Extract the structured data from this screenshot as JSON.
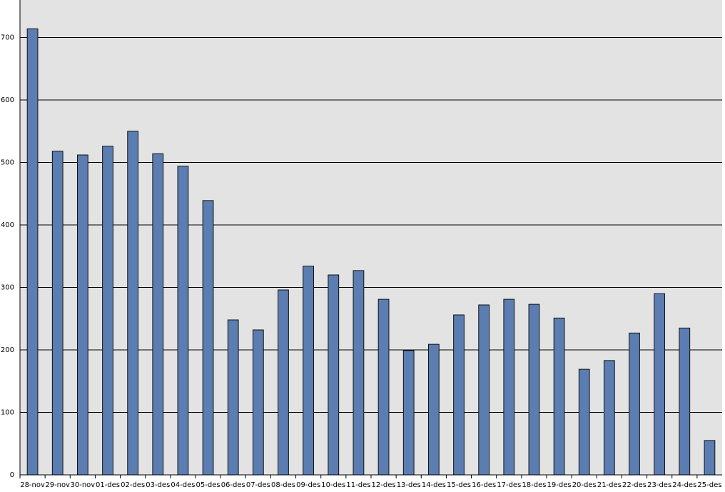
{
  "chart_data": {
    "type": "bar",
    "categories": [
      "28-nov",
      "29-nov",
      "30-nov",
      "01-des",
      "02-des",
      "03-des",
      "04-des",
      "05-des",
      "06-des",
      "07-des",
      "08-des",
      "09-des",
      "10-des",
      "11-des",
      "12-des",
      "13-des",
      "14-des",
      "15-des",
      "16-des",
      "17-des",
      "18-des",
      "19-des",
      "20-des",
      "21-des",
      "22-des",
      "23-des",
      "24-des",
      "25-des"
    ],
    "values": [
      714,
      518,
      512,
      526,
      550,
      514,
      494,
      439,
      248,
      232,
      296,
      334,
      320,
      327,
      281,
      199,
      209,
      256,
      272,
      281,
      273,
      251,
      169,
      183,
      227,
      290,
      235,
      55
    ],
    "color": "#5b7db1",
    "ylim": [
      0,
      760
    ],
    "yticks": [
      0,
      100,
      200,
      300,
      400,
      500,
      600,
      700
    ],
    "grid": true
  }
}
